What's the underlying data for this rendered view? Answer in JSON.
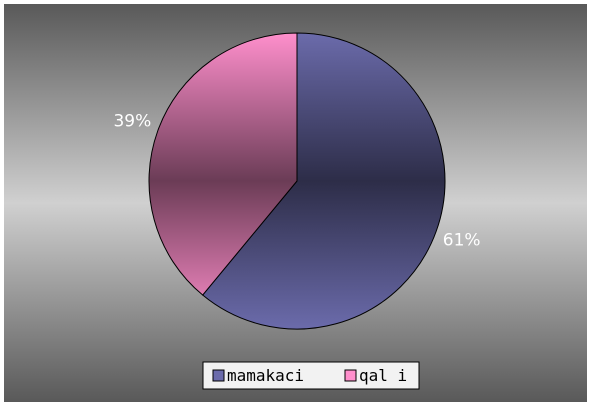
{
  "chart_data": {
    "type": "pie",
    "categories": [
      "mamakaci",
      "qal i"
    ],
    "values": [
      61,
      39
    ],
    "value_labels": [
      "61%",
      "39%"
    ],
    "colors": [
      "#6b6bab",
      "#ff8fcc"
    ],
    "legend": "bottom"
  }
}
